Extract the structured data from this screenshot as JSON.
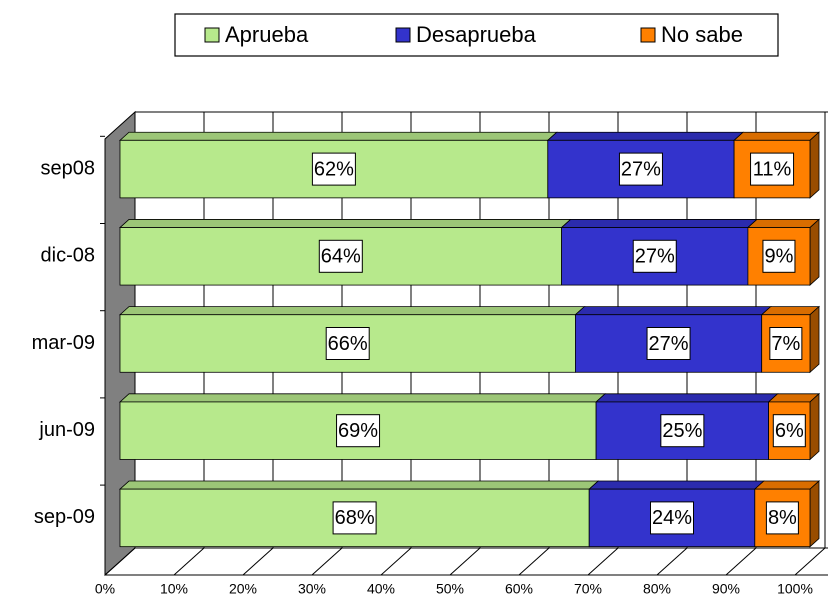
{
  "chart_data": {
    "type": "stacked-bar-3d",
    "categories": [
      "sep08",
      "dic-08",
      "mar-09",
      "jun-09",
      "sep-09"
    ],
    "series": [
      {
        "name": "Aprueba",
        "color": "#b7e98c",
        "values": [
          62,
          64,
          66,
          69,
          68
        ],
        "value_labels": [
          "62%",
          "64%",
          "66%",
          "69%",
          "68%"
        ]
      },
      {
        "name": "Desaprueba",
        "color": "#3333cc",
        "values": [
          27,
          27,
          27,
          25,
          24
        ],
        "value_labels": [
          "27%",
          "27%",
          "27%",
          "25%",
          "24%"
        ]
      },
      {
        "name": "No sabe",
        "color": "#ff8000",
        "values": [
          11,
          9,
          7,
          6,
          8
        ],
        "value_labels": [
          "11%",
          "9%",
          "7%",
          "6%",
          "8%"
        ]
      }
    ],
    "xlim": [
      0,
      100
    ],
    "xticks": [
      {
        "value": 0,
        "label": "0%"
      },
      {
        "value": 10,
        "label": "10%"
      },
      {
        "value": 20,
        "label": "20%"
      },
      {
        "value": 30,
        "label": "30%"
      },
      {
        "value": 40,
        "label": "40%"
      },
      {
        "value": 50,
        "label": "50%"
      },
      {
        "value": 60,
        "label": "60%"
      },
      {
        "value": 70,
        "label": "70%"
      },
      {
        "value": 80,
        "label": "80%"
      },
      {
        "value": 90,
        "label": "90%"
      },
      {
        "value": 100,
        "label": "100%"
      }
    ],
    "grid": true,
    "legend": "top"
  }
}
